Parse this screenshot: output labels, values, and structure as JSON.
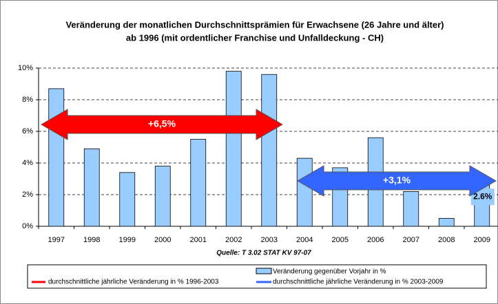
{
  "chart_data": {
    "type": "bar",
    "title": [
      "Veränderung der  monatlichen Durchschnittsprämien für Erwachsene (26 Jahre und älter)",
      "ab 1996 (mit ordentlicher Franchise und Unfalldeckung - CH)"
    ],
    "categories": [
      "1997",
      "1998",
      "1999",
      "2000",
      "2001",
      "2002",
      "2003",
      "2004",
      "2005",
      "2006",
      "2007",
      "2008",
      "2009"
    ],
    "series": [
      {
        "name": "Veränderung gegenüber Vorjahr in %",
        "color": "#99ccff",
        "values": [
          8.7,
          4.9,
          3.4,
          3.8,
          5.5,
          9.8,
          9.6,
          4.3,
          3.7,
          5.6,
          2.2,
          0.5,
          2.6
        ],
        "value_labels": [
          null,
          null,
          null,
          null,
          null,
          null,
          null,
          null,
          null,
          null,
          null,
          null,
          "2.6%"
        ]
      }
    ],
    "ylim": [
      0,
      10
    ],
    "yticks": [
      {
        "value": 0,
        "label": "0%"
      },
      {
        "value": 2,
        "label": "2%"
      },
      {
        "value": 4,
        "label": "4%"
      },
      {
        "value": 6,
        "label": "6%"
      },
      {
        "value": 8,
        "label": "8%"
      },
      {
        "value": 10,
        "label": "10%"
      }
    ],
    "grid": true,
    "annotations": [
      {
        "text": "+6,5%",
        "legend": "durchschnittliche jährliche Veränderung in % 1996-2003",
        "color": "#ff0000"
      },
      {
        "text": "+3,1%",
        "legend": "durchschnittliche jährliche Veränderung in % 2003-2009",
        "color": "#3366ff"
      }
    ],
    "source": "Quelle: T 3.02 STAT KV 97-07"
  }
}
